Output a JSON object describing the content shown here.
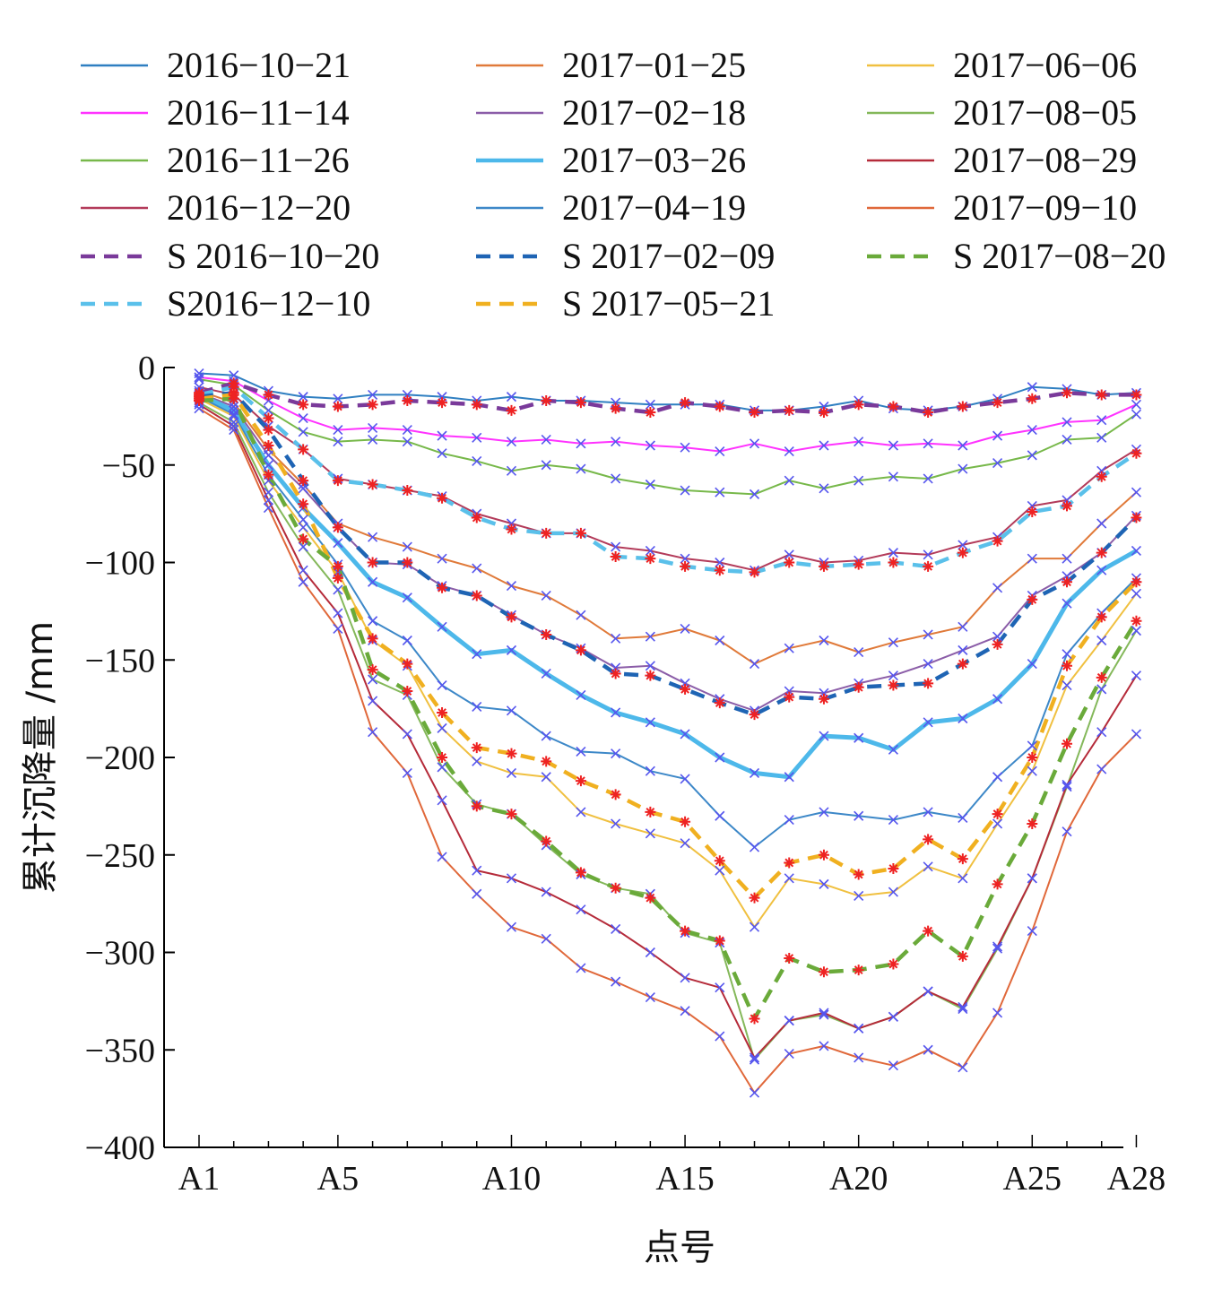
{
  "chart_data": {
    "type": "line",
    "xlabel": "点号",
    "ylabel": "累计沉降量 /mm",
    "ylim": [
      -400,
      0
    ],
    "yticks": [
      0,
      -50,
      -100,
      -150,
      -200,
      -250,
      -300,
      -350,
      -400
    ],
    "xtick_labels": [
      "A1",
      "A5",
      "A10",
      "A15",
      "A20",
      "A25",
      "A28"
    ],
    "xtick_positions": [
      1,
      5,
      10,
      15,
      20,
      25,
      28
    ],
    "points": [
      "A1",
      "A2",
      "A3",
      "A4",
      "A5",
      "A6",
      "A7",
      "A8",
      "A9",
      "A10",
      "A11",
      "A12",
      "A13",
      "A14",
      "A15",
      "A16",
      "A17",
      "A18",
      "A19",
      "A20",
      "A21",
      "A22",
      "A23",
      "A24",
      "A25",
      "A26",
      "A27",
      "A28"
    ],
    "legend_position": "top",
    "series": [
      {
        "name": "2016-10-21",
        "color": "#2f7fc1",
        "width": 2,
        "dash": "",
        "marker": "x",
        "values": [
          -3,
          -4,
          -12,
          -15,
          -16,
          -14,
          -14,
          -15,
          -17,
          -15,
          -17,
          -17,
          -18,
          -19,
          -19,
          -19,
          -22,
          -22,
          -20,
          -17,
          -21,
          -22,
          -20,
          -16,
          -10,
          -11,
          -14,
          -13
        ]
      },
      {
        "name": "2016-11-14",
        "color": "#ff33ff",
        "width": 2,
        "dash": "",
        "marker": "x",
        "values": [
          -5,
          -7,
          -17,
          -26,
          -32,
          -31,
          -32,
          -35,
          -36,
          -38,
          -37,
          -39,
          -38,
          -40,
          -41,
          -43,
          -39,
          -43,
          -40,
          -38,
          -40,
          -39,
          -40,
          -35,
          -32,
          -28,
          -27,
          -19
        ]
      },
      {
        "name": "2016-11-26",
        "color": "#77b84a",
        "width": 2,
        "dash": "",
        "marker": "x",
        "values": [
          -6,
          -9,
          -22,
          -33,
          -38,
          -37,
          -38,
          -44,
          -48,
          -53,
          -50,
          -52,
          -57,
          -60,
          -63,
          -64,
          -65,
          -58,
          -62,
          -58,
          -56,
          -57,
          -52,
          -49,
          -45,
          -37,
          -36,
          -24
        ]
      },
      {
        "name": "2016-12-20",
        "color": "#b33b5a",
        "width": 2,
        "dash": "",
        "marker": "x",
        "values": [
          -10,
          -14,
          -30,
          -42,
          -57,
          -60,
          -63,
          -66,
          -75,
          -80,
          -85,
          -85,
          -92,
          -94,
          -98,
          -100,
          -104,
          -96,
          -100,
          -99,
          -95,
          -96,
          -91,
          -87,
          -71,
          -68,
          -53,
          -42
        ]
      },
      {
        "name": "2017-01-25",
        "color": "#e07a3a",
        "width": 2,
        "dash": "",
        "marker": "x",
        "values": [
          -12,
          -18,
          -42,
          -60,
          -80,
          -87,
          -92,
          -98,
          -103,
          -112,
          -117,
          -127,
          -139,
          -138,
          -134,
          -140,
          -152,
          -144,
          -140,
          -146,
          -141,
          -137,
          -133,
          -113,
          -98,
          -98,
          -80,
          -64
        ]
      },
      {
        "name": "2017-02-18",
        "color": "#8b5da8",
        "width": 2,
        "dash": "",
        "marker": "x",
        "values": [
          -13,
          -20,
          -45,
          -62,
          -82,
          -100,
          -101,
          -112,
          -117,
          -127,
          -137,
          -144,
          -154,
          -153,
          -162,
          -170,
          -176,
          -166,
          -167,
          -162,
          -158,
          -152,
          -145,
          -138,
          -117,
          -107,
          -95,
          -76
        ]
      },
      {
        "name": "2017-03-26",
        "color": "#4db8ea",
        "width": 5,
        "dash": "",
        "marker": "x",
        "values": [
          -14,
          -22,
          -50,
          -72,
          -90,
          -110,
          -118,
          -133,
          -147,
          -145,
          -157,
          -168,
          -177,
          -182,
          -188,
          -200,
          -208,
          -210,
          -189,
          -190,
          -196,
          -182,
          -180,
          -170,
          -152,
          -121,
          -104,
          -94
        ]
      },
      {
        "name": "2017-04-19",
        "color": "#3d88c8",
        "width": 2,
        "dash": "",
        "marker": "x",
        "values": [
          -15,
          -24,
          -55,
          -78,
          -101,
          -130,
          -140,
          -163,
          -174,
          -176,
          -189,
          -197,
          -198,
          -207,
          -211,
          -230,
          -246,
          -232,
          -228,
          -230,
          -232,
          -228,
          -231,
          -210,
          -194,
          -147,
          -126,
          -108
        ]
      },
      {
        "name": "2017-06-06",
        "color": "#f0c040",
        "width": 2,
        "dash": "",
        "marker": "x",
        "values": [
          -16,
          -25,
          -58,
          -82,
          -105,
          -140,
          -153,
          -185,
          -202,
          -208,
          -210,
          -228,
          -234,
          -239,
          -244,
          -258,
          -287,
          -262,
          -265,
          -271,
          -269,
          -256,
          -262,
          -234,
          -207,
          -163,
          -140,
          -116
        ]
      },
      {
        "name": "2017-08-05",
        "color": "#84b85a",
        "width": 2,
        "dash": "",
        "marker": "x",
        "values": [
          -18,
          -28,
          -64,
          -92,
          -114,
          -160,
          -168,
          -205,
          -224,
          -229,
          -245,
          -260,
          -267,
          -270,
          -290,
          -295,
          -355,
          -335,
          -332,
          -339,
          -333,
          -320,
          -329,
          -298,
          -262,
          -215,
          -165,
          -135
        ]
      },
      {
        "name": "2017-08-29",
        "color": "#b52b3a",
        "width": 2,
        "dash": "",
        "marker": "x",
        "values": [
          -19,
          -30,
          -68,
          -104,
          -126,
          -171,
          -188,
          -222,
          -258,
          -262,
          -269,
          -278,
          -288,
          -300,
          -313,
          -318,
          -354,
          -335,
          -331,
          -339,
          -333,
          -320,
          -328,
          -297,
          -262,
          -214,
          -187,
          -158
        ]
      },
      {
        "name": "2017-09-10",
        "color": "#e0683a",
        "width": 2,
        "dash": "",
        "marker": "x",
        "values": [
          -21,
          -32,
          -72,
          -110,
          -134,
          -187,
          -208,
          -251,
          -270,
          -287,
          -293,
          -308,
          -315,
          -323,
          -330,
          -343,
          -372,
          -352,
          -348,
          -354,
          -358,
          -350,
          -359,
          -331,
          -289,
          -238,
          -206,
          -188
        ]
      },
      {
        "name": "S 2016-10-20",
        "color": "#7a3a9a",
        "width": 4.5,
        "dash": "16 10",
        "marker": "star",
        "values": [
          -13,
          -8,
          -14,
          -19,
          -20,
          -19,
          -17,
          -18,
          -19,
          -22,
          -17,
          -18,
          -21,
          -23,
          -18,
          -20,
          -23,
          -22,
          -23,
          -19,
          -20,
          -23,
          -20,
          -18,
          -16,
          -13,
          -14,
          -14
        ]
      },
      {
        "name": "S2016-12-10",
        "color": "#5ac0ea",
        "width": 4.5,
        "dash": "16 10",
        "marker": "star",
        "values": [
          -14,
          -10,
          -26,
          -42,
          -58,
          -60,
          -63,
          -67,
          -77,
          -83,
          -85,
          -85,
          -97,
          -98,
          -102,
          -104,
          -105,
          -100,
          -102,
          -101,
          -100,
          -102,
          -95,
          -89,
          -74,
          -71,
          -56,
          -44
        ]
      },
      {
        "name": "S 2017-02-09",
        "color": "#1e64b4",
        "width": 4.5,
        "dash": "16 10",
        "marker": "star",
        "values": [
          -15,
          -13,
          -32,
          -58,
          -82,
          -100,
          -100,
          -113,
          -117,
          -128,
          -137,
          -145,
          -157,
          -158,
          -165,
          -172,
          -178,
          -169,
          -170,
          -164,
          -163,
          -162,
          -152,
          -142,
          -119,
          -110,
          -95,
          -77
        ]
      },
      {
        "name": "S 2017-05-21",
        "color": "#f0b020",
        "width": 4.5,
        "dash": "16 10",
        "marker": "star",
        "values": [
          -16,
          -14,
          -40,
          -70,
          -108,
          -139,
          -152,
          -177,
          -195,
          -198,
          -202,
          -212,
          -219,
          -228,
          -233,
          -253,
          -272,
          -254,
          -250,
          -260,
          -257,
          -242,
          -252,
          -229,
          -200,
          -153,
          -128,
          -110
        ]
      },
      {
        "name": "S 2017-08-20",
        "color": "#6aaa3a",
        "width": 4.5,
        "dash": "16 10",
        "marker": "star",
        "values": [
          -17,
          -16,
          -55,
          -88,
          -102,
          -155,
          -166,
          -200,
          -225,
          -229,
          -243,
          -259,
          -267,
          -272,
          -289,
          -294,
          -334,
          -303,
          -310,
          -309,
          -306,
          -289,
          -302,
          -265,
          -234,
          -193,
          -159,
          -130
        ]
      }
    ]
  }
}
